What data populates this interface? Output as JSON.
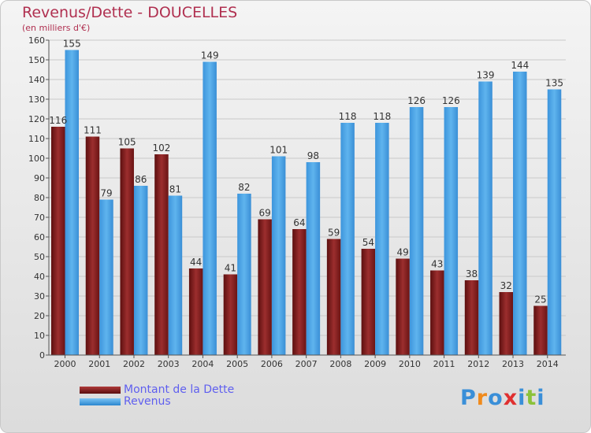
{
  "header": {
    "title": "Revenus/Dette - DOUCELLES",
    "subtitle": "(en milliers d'€)"
  },
  "legend": {
    "items": [
      {
        "label": "Montant de la Dette",
        "color": "#7a1a1a"
      },
      {
        "label": "Revenus",
        "color": "#4aa3e3"
      }
    ]
  },
  "logo": {
    "text": "Proxiti",
    "letters": [
      "P",
      "r",
      "o",
      "x",
      "i",
      "t",
      "i"
    ],
    "colors": [
      "#3a8fd8",
      "#f08a1c",
      "#3a8fd8",
      "#e03030",
      "#3a8fd8",
      "#8bc23a",
      "#3a8fd8"
    ]
  },
  "chart_data": {
    "type": "bar",
    "title": "Revenus/Dette - DOUCELLES",
    "subtitle": "(en milliers d'€)",
    "categories": [
      "2000",
      "2001",
      "2002",
      "2003",
      "2004",
      "2005",
      "2006",
      "2007",
      "2008",
      "2009",
      "2010",
      "2011",
      "2012",
      "2013",
      "2014"
    ],
    "series": [
      {
        "name": "Montant de la Dette",
        "color": "#7a1a1a",
        "values": [
          116,
          111,
          105,
          102,
          44,
          41,
          69,
          64,
          59,
          54,
          49,
          43,
          38,
          32,
          25
        ]
      },
      {
        "name": "Revenus",
        "color": "#4aa3e3",
        "values": [
          155,
          79,
          86,
          81,
          149,
          82,
          101,
          98,
          118,
          118,
          126,
          126,
          139,
          144,
          135
        ]
      }
    ],
    "ylim": [
      0,
      160
    ],
    "yticks": [
      0,
      10,
      20,
      30,
      40,
      50,
      60,
      70,
      80,
      90,
      100,
      110,
      120,
      130,
      140,
      150,
      160
    ],
    "grid": true,
    "legend_position": "bottom-left"
  }
}
